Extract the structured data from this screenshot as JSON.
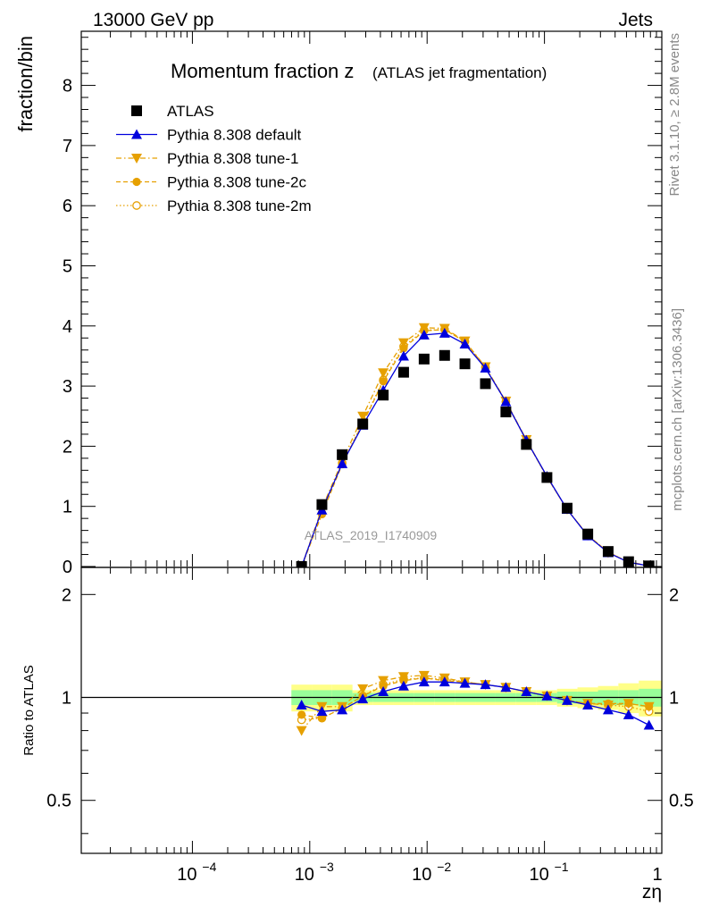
{
  "header": {
    "left": "13000 GeV pp",
    "right": "Jets"
  },
  "side": {
    "rivet": "Rivet 3.1.10, ≥ 2.8M events",
    "mcplots": "mcplots.cern.ch [arXiv:1306.3436]"
  },
  "colors": {
    "atlas": "#000000",
    "default": "#0000dd",
    "tunes": "#e6a000",
    "band_inner": "#99ff99",
    "band_outer": "#ffff88"
  },
  "chart_data": [
    {
      "type": "scatter",
      "title_main": "Momentum fraction z",
      "title_sub": "(ATLAS jet fragmentation)",
      "ylabel": "fraction/bin",
      "xscale": "log",
      "xlim": [
        1.13e-05,
        1
      ],
      "ylim": [
        0,
        8.9
      ],
      "yticks": [
        "0",
        "1",
        "2",
        "3",
        "4",
        "5",
        "6",
        "7",
        "8"
      ],
      "watermark": "ATLAS_2019_I1740909",
      "legend_position": "top-left",
      "x": [
        0.000852,
        0.00127,
        0.00189,
        0.00283,
        0.00423,
        0.00631,
        0.00943,
        0.0141,
        0.021,
        0.0314,
        0.0469,
        0.0701,
        0.105,
        0.156,
        0.234,
        0.349,
        0.521,
        0.778
      ],
      "series": [
        {
          "name": "ATLAS",
          "marker": "square",
          "values": [
            0.0,
            1.03,
            1.86,
            2.37,
            2.85,
            3.23,
            3.45,
            3.51,
            3.37,
            3.04,
            2.57,
            2.03,
            1.48,
            0.97,
            0.54,
            0.25,
            0.08,
            0.01
          ]
        },
        {
          "name": "Pythia 8.308 default",
          "marker": "triangle-up",
          "line": "solid",
          "values": [
            0.0,
            0.94,
            1.71,
            2.35,
            2.93,
            3.5,
            3.85,
            3.88,
            3.7,
            3.3,
            2.74,
            2.1,
            1.5,
            0.95,
            0.51,
            0.23,
            0.07,
            0.01
          ]
        },
        {
          "name": "Pythia 8.308 tune-1",
          "marker": "triangle-down",
          "line": "dashdot",
          "values": [
            0.0,
            0.97,
            1.75,
            2.5,
            3.22,
            3.72,
            3.97,
            3.96,
            3.75,
            3.32,
            2.75,
            2.11,
            1.49,
            0.95,
            0.52,
            0.23,
            0.08,
            0.01
          ]
        },
        {
          "name": "Pythia 8.308 tune-2c",
          "marker": "circle",
          "line": "dashed",
          "values": [
            0.0,
            0.87,
            1.7,
            2.38,
            3.08,
            3.63,
            3.92,
            3.94,
            3.74,
            3.31,
            2.74,
            2.1,
            1.49,
            0.95,
            0.52,
            0.24,
            0.07,
            0.01
          ]
        },
        {
          "name": "Pythia 8.308 tune-2m",
          "marker": "circle-open",
          "line": "dotted",
          "values": [
            0.0,
            0.89,
            1.72,
            2.39,
            3.1,
            3.66,
            3.93,
            3.94,
            3.74,
            3.31,
            2.74,
            2.1,
            1.49,
            0.95,
            0.52,
            0.24,
            0.07,
            0.01
          ]
        }
      ]
    },
    {
      "type": "scatter",
      "ylabel": "Ratio to ATLAS",
      "xlabel": "zη",
      "xscale": "log",
      "xlim": [
        1.13e-05,
        1
      ],
      "ylim": [
        0.35,
        2.4
      ],
      "yticks": [
        "0.5",
        "1",
        "2"
      ],
      "xticks": [
        {
          "base": "10",
          "exp": "−4"
        },
        {
          "base": "10",
          "exp": "−3"
        },
        {
          "base": "10",
          "exp": "−2"
        },
        {
          "base": "10",
          "exp": "−1"
        },
        {
          "base": "1",
          "exp": ""
        }
      ],
      "reference": 1,
      "x": [
        0.000852,
        0.00127,
        0.00189,
        0.00283,
        0.00423,
        0.00631,
        0.00943,
        0.0141,
        0.021,
        0.0314,
        0.0469,
        0.0701,
        0.105,
        0.156,
        0.234,
        0.349,
        0.521,
        0.778
      ],
      "band_inner": [
        0.05,
        0.05,
        0.05,
        0.03,
        0.03,
        0.03,
        0.03,
        0.03,
        0.03,
        0.03,
        0.03,
        0.03,
        0.03,
        0.04,
        0.04,
        0.05,
        0.05,
        0.06
      ],
      "band_outer": [
        0.09,
        0.09,
        0.09,
        0.05,
        0.05,
        0.05,
        0.05,
        0.05,
        0.05,
        0.05,
        0.05,
        0.05,
        0.05,
        0.06,
        0.07,
        0.08,
        0.1,
        0.12
      ],
      "series": [
        {
          "name": "Pythia 8.308 default",
          "values": [
            0.95,
            0.91,
            0.92,
            0.99,
            1.04,
            1.08,
            1.11,
            1.11,
            1.1,
            1.09,
            1.07,
            1.04,
            1.01,
            0.98,
            0.95,
            0.92,
            0.89,
            0.83
          ]
        },
        {
          "name": "Pythia 8.308 tune-1",
          "values": [
            0.8,
            0.94,
            0.94,
            1.06,
            1.12,
            1.15,
            1.16,
            1.14,
            1.11,
            1.09,
            1.07,
            1.04,
            1.01,
            0.98,
            0.96,
            0.95,
            0.96,
            0.94
          ]
        },
        {
          "name": "Pythia 8.308 tune-2c",
          "values": [
            0.89,
            0.87,
            0.93,
            1.01,
            1.08,
            1.12,
            1.14,
            1.12,
            1.11,
            1.09,
            1.07,
            1.04,
            1.01,
            0.98,
            0.96,
            0.96,
            0.96,
            0.94
          ]
        },
        {
          "name": "Pythia 8.308 tune-2m",
          "values": [
            0.86,
            0.87,
            0.93,
            1.01,
            1.09,
            1.13,
            1.14,
            1.13,
            1.11,
            1.09,
            1.07,
            1.04,
            1.01,
            0.98,
            0.96,
            0.95,
            0.94,
            0.91
          ]
        }
      ]
    }
  ]
}
